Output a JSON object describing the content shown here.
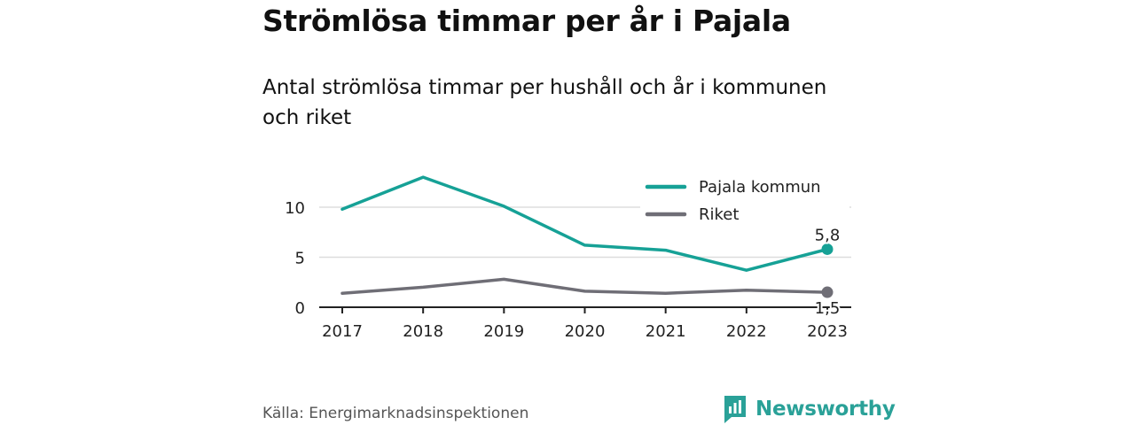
{
  "title": "Strömlösa timmar per år i Pajala",
  "subtitle": "Antal strömlösa timmar per hushåll och år i kommunen och riket",
  "source": "Källa: Energimarknadsinspektionen",
  "brand": "Newsworthy",
  "colors": {
    "pajala": "#16a196",
    "riket": "#6f6e76",
    "grid": "#dddddd",
    "axis": "#222222",
    "brand": "#2aa198"
  },
  "chart_data": {
    "type": "line",
    "x": [
      "2017",
      "2018",
      "2019",
      "2020",
      "2021",
      "2022",
      "2023"
    ],
    "yticks": [
      0,
      5,
      10
    ],
    "ylim": [
      0,
      13
    ],
    "grid": true,
    "legend": "top-right",
    "series": [
      {
        "name": "Pajala kommun",
        "values": [
          9.8,
          13.0,
          10.1,
          6.2,
          5.7,
          3.7,
          5.8
        ],
        "end_label": "5,8",
        "color": "#16a196"
      },
      {
        "name": "Riket",
        "values": [
          1.4,
          2.0,
          2.8,
          1.6,
          1.4,
          1.7,
          1.5
        ],
        "end_label": "1,5",
        "color": "#6f6e76"
      }
    ]
  }
}
